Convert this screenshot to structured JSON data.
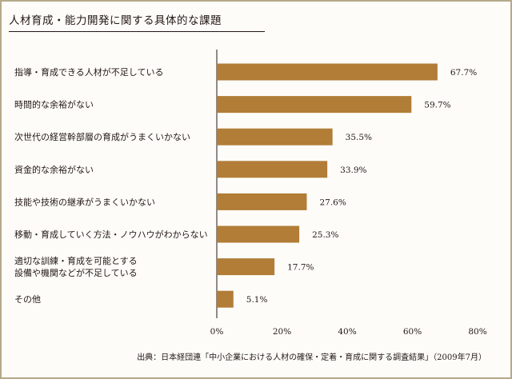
{
  "title": "人材育成・能力開発に関する具体的な課題",
  "source": "出典：日本経団連「中小企業における人材の確保・定着・育成に関する調査結果」（2009年7月）",
  "colors": {
    "bar": "#b17d37",
    "axis": "#231815",
    "frame": "#b5a98a"
  },
  "chart_data": {
    "type": "bar",
    "orientation": "horizontal",
    "categories": [
      [
        "指導・育成できる人材が不足している"
      ],
      [
        "時間的な余裕がない"
      ],
      [
        "次世代の経営幹部層の育成がうまくいかない"
      ],
      [
        "資金的な余裕がない"
      ],
      [
        "技能や技術の継承がうまくいかない"
      ],
      [
        "移動・育成していく方法・ノウハウがわからない"
      ],
      [
        "適切な訓練・育成を可能とする",
        "設備や機関などが不足している"
      ],
      [
        "その他"
      ]
    ],
    "values": [
      67.7,
      59.7,
      35.5,
      33.9,
      27.6,
      25.3,
      17.7,
      5.1
    ],
    "value_labels": [
      "67.7%",
      "59.7%",
      "35.5%",
      "33.9%",
      "27.6%",
      "25.3%",
      "17.7%",
      "5.1%"
    ],
    "xlim": [
      0,
      80
    ],
    "xticks": [
      0,
      20,
      40,
      60,
      80
    ],
    "xtick_labels": [
      "0%",
      "20%",
      "40%",
      "60%",
      "80%"
    ],
    "grid": false,
    "legend": null
  }
}
